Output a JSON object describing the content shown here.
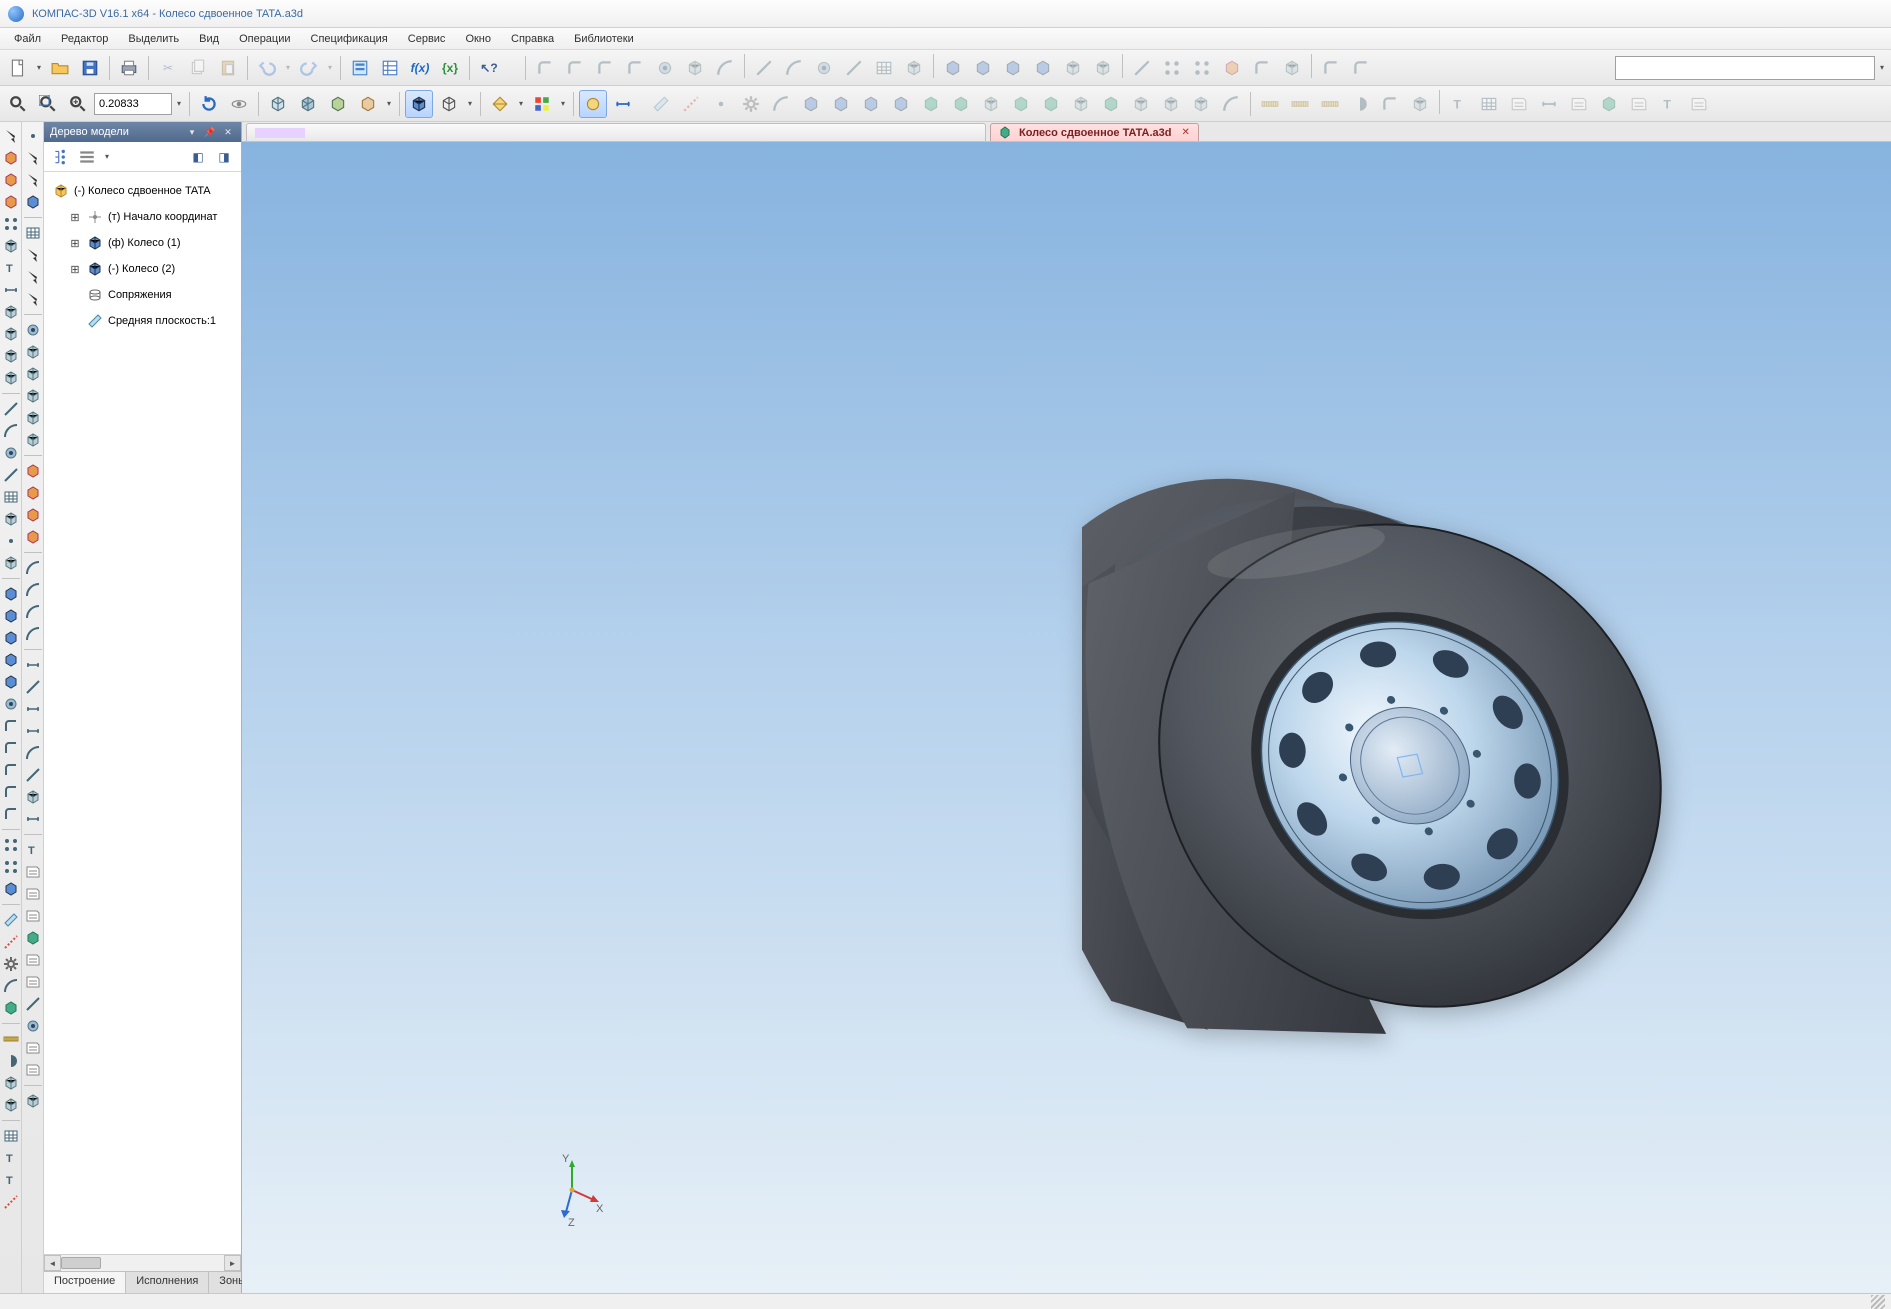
{
  "title": "КОМПАС-3D V16.1 x64 - Колесо сдвоенное TATA.a3d",
  "menu": [
    "Файл",
    "Редактор",
    "Выделить",
    "Вид",
    "Операции",
    "Спецификация",
    "Сервис",
    "Окно",
    "Справка",
    "Библиотеки"
  ],
  "toolbar1": {
    "zoom_value": "0.20833",
    "icons": [
      "new-document",
      "open",
      "save",
      "print",
      "sep",
      "cut",
      "copy",
      "paste",
      "paste-special",
      "sep",
      "undo",
      "redo",
      "sep",
      "properties-panel",
      "properties",
      "fx",
      "variables",
      "sep",
      "help-pointer"
    ],
    "dim_icons": [
      "chamfer",
      "shell",
      "draft",
      "rib",
      "hole",
      "wrap",
      "move-face",
      "sep",
      "sketch-line",
      "sketch-arc",
      "sketch-circle",
      "sketch-spline",
      "sketch-rect",
      "sketch-poly",
      "sep",
      "extrude",
      "revolve",
      "sweep",
      "loft",
      "boundary",
      "thicken",
      "sep",
      "pattern-linear",
      "pattern-circular",
      "mirror",
      "scale",
      "shell2",
      "combine",
      "sep",
      "fillet",
      "chamfer2"
    ]
  },
  "toolbar2": {
    "left_icons": [
      "zoom-window",
      "zoom-fit",
      "zoom-scale"
    ],
    "mid_icons": [
      "rotate",
      "orbit",
      "cube-front",
      "cube-iso",
      "cube-right",
      "cube-custom",
      "shaded",
      "shaded-edges",
      "wireframe",
      "section"
    ],
    "right_dim_icons": [
      "plane",
      "axis",
      "point",
      "csys",
      "curve",
      "surface-extrude",
      "surface-revolve",
      "surface-sweep",
      "surface-loft",
      "surface-fill",
      "trim",
      "extend",
      "knit",
      "offset",
      "thicken-surf",
      "ruled",
      "planar",
      "boundary-surf",
      "freeform",
      "delete-face"
    ],
    "far_icons": [
      "measure",
      "mass",
      "interference",
      "section-analysis",
      "draft-analysis",
      "curvature",
      "sep",
      "text",
      "table",
      "balloon",
      "gdim",
      "datum",
      "surface-finish",
      "weld",
      "note",
      "revision"
    ]
  },
  "left_bar_a": [
    "arrow",
    "move",
    "rotate",
    "scale",
    "mirror",
    "sketch",
    "text",
    "dimension",
    "constraint",
    "hide",
    "layer",
    "color",
    "sep",
    "line",
    "arc",
    "circle",
    "spline",
    "rect",
    "ellipse",
    "point",
    "hatch",
    "sep",
    "extrude",
    "cut",
    "revolve",
    "sweep",
    "loft",
    "hole",
    "fillet",
    "chamfer",
    "shell",
    "rib",
    "draft",
    "sep",
    "pattern",
    "mirror3d",
    "boolean",
    "sep",
    "plane",
    "axis3d",
    "csys3d",
    "curve3d",
    "surface",
    "sep",
    "measure",
    "section",
    "exploded",
    "render",
    "sep",
    "table",
    "text3d",
    "annotation",
    "axis-sys"
  ],
  "left_bar_b": [
    "filter-vertex",
    "filter-edge",
    "filter-face",
    "filter-body",
    "sep",
    "select-box",
    "select-lasso",
    "select-chain",
    "select-loop",
    "sep",
    "hole-wizard",
    "thread",
    "lip-groove",
    "mount-boss",
    "snap-hook",
    "vent",
    "sep",
    "dome",
    "flex",
    "deform",
    "indent",
    "sep",
    "curve-project",
    "curve-intersect",
    "curve-composite",
    "helix",
    "sep",
    "smart-dim",
    "linear-dim",
    "angular-dim",
    "radial-dim",
    "arc-dim",
    "baseline",
    "chain",
    "ordinate",
    "sep",
    "note2",
    "balloon2",
    "datum2",
    "gtol",
    "surface-finish2",
    "weld2",
    "center-mark",
    "centerline",
    "hole-table",
    "revision2",
    "bom",
    "sep",
    "view-break"
  ],
  "tree": {
    "panel_title": "Дерево модели",
    "root": "(-) Колесо сдвоенное TATA",
    "items": [
      {
        "indent": 1,
        "twist": "+",
        "icon": "origin",
        "label": "(т) Начало координат"
      },
      {
        "indent": 1,
        "twist": "+",
        "icon": "part",
        "label": "(ф) Колесо (1)"
      },
      {
        "indent": 1,
        "twist": "+",
        "icon": "part",
        "label": "(-) Колесо (2)"
      },
      {
        "indent": 1,
        "twist": "",
        "icon": "mate",
        "label": "Сопряжения"
      },
      {
        "indent": 1,
        "twist": "",
        "icon": "plane",
        "label": "Средняя плоскость:1"
      }
    ],
    "tabs": [
      "Построение",
      "Исполнения",
      "Зоны"
    ]
  },
  "doc_tab": {
    "label": "Колесо сдвоенное TATA.a3d"
  },
  "axis_labels": {
    "x": "X",
    "y": "Y",
    "z": "Z"
  },
  "viewport": {
    "gradient_top": "#87b3df",
    "gradient_mid": "#b5d1ec",
    "gradient_bottom": "#e7f0f7",
    "tire_color": "#555a5e",
    "tire_shadow": "#3c4044",
    "rim_base": "#b6d0e7",
    "rim_light": "#e2eef8",
    "rim_edge": "#4f6a88",
    "hub_color": "#a9c2da"
  }
}
